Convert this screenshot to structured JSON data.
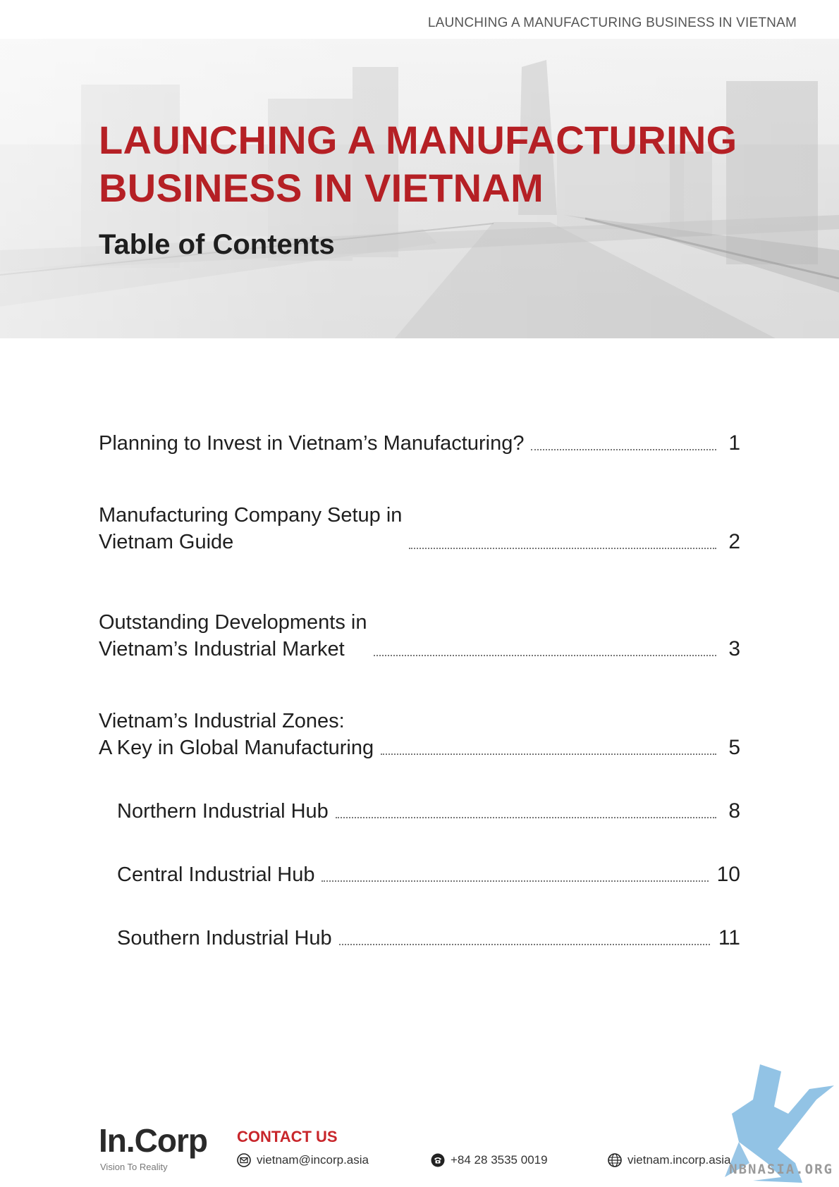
{
  "header": {
    "running_title": "LAUNCHING A MANUFACTURING BUSINESS IN VIETNAM"
  },
  "hero": {
    "title": "LAUNCHING A MANUFACTURING\nBUSINESS IN VIETNAM",
    "subtitle": "Table of Contents"
  },
  "toc": {
    "entries": [
      {
        "label": "Planning to Invest in Vietnam’s Manufacturing?",
        "page": "1",
        "level": 1
      },
      {
        "label": "Manufacturing Company Setup in\nVietnam Guide",
        "page": "2",
        "level": 1
      },
      {
        "label": "Outstanding Developments in\nVietnam’s Industrial Market",
        "page": "3",
        "level": 1
      },
      {
        "label": "Vietnam’s Industrial Zones:\nA Key in Global Manufacturing",
        "page": "5",
        "level": 1
      },
      {
        "label": "Northern Industrial Hub",
        "page": "8",
        "level": 2
      },
      {
        "label": "Central Industrial Hub",
        "page": "10",
        "level": 2
      },
      {
        "label": "Southern Industrial Hub",
        "page": "11",
        "level": 2
      }
    ]
  },
  "footer": {
    "logo_text": "In.Corp",
    "logo_tagline": "Vision To Reality",
    "contact_title": "CONTACT US",
    "email": "vietnam@incorp.asia",
    "phone": "+84 28 3535 0019",
    "website": "vietnam.incorp.asia",
    "watermark": "NBNASIA.ORG"
  },
  "colors": {
    "accent_red": "#b52025",
    "text_dark": "#1f1f1f",
    "watermark_blue": "#7fb8e0"
  }
}
